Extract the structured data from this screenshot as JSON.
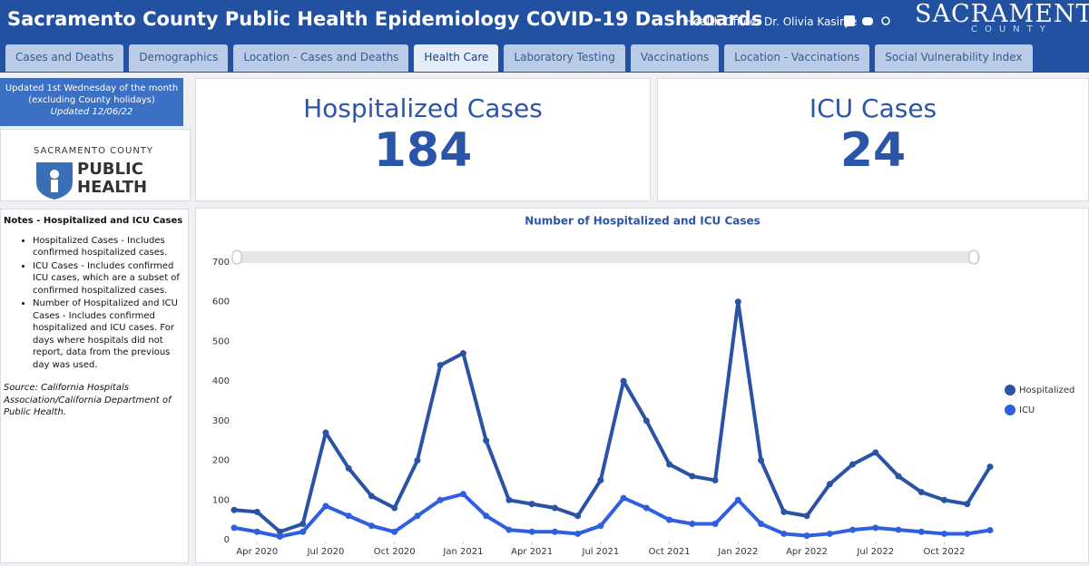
{
  "header": {
    "title": "Sacramento County Public Health Epidemiology COVID-19 Dashboards",
    "officer": "Health Officer Dr. Olivia Kasirye",
    "logo_top": "SACRAMENTO",
    "logo_bottom": "COUNTY"
  },
  "tabs": [
    "Cases and Deaths",
    "Demographics",
    "Location - Cases and Deaths",
    "Health Care",
    "Laboratory Testing",
    "Vaccinations",
    "Location - Vaccinations",
    "Social Vulnerability Index"
  ],
  "active_tab": "Health Care",
  "sidebar": {
    "update_lines": [
      "Updated 1st Wednesday of the month",
      "(excluding County holidays)",
      "Updated 12/06/22"
    ],
    "logo_lines": [
      "SACRAMENTO COUNTY",
      "PUBLIC",
      "HEALTH"
    ],
    "notes_title": "Notes - Hospitalized and ICU Cases",
    "notes": [
      "Hospitalized Cases - Includes confirmed hospitalized cases.",
      "ICU Cases - Includes confirmed ICU cases, which are a subset of confirmed hospitalized cases.",
      "Number of Hospitalized and ICU Cases - Includes confirmed hospitalized and ICU cases. For days where hospitals did not report, data from the previous day was used."
    ],
    "source": "Source: California Hospitals Association/California Department of Public Health."
  },
  "kpis": [
    {
      "label": "Hospitalized Cases",
      "value": 184
    },
    {
      "label": "ICU Cases",
      "value": 24
    }
  ],
  "chart_data": {
    "type": "line",
    "title": "Number of Hospitalized and ICU Cases",
    "x": [
      "2020-03",
      "2020-04",
      "2020-05",
      "2020-06",
      "2020-07",
      "2020-08",
      "2020-09",
      "2020-10",
      "2020-11",
      "2020-12",
      "2021-01",
      "2021-02",
      "2021-03",
      "2021-04",
      "2021-05",
      "2021-06",
      "2021-07",
      "2021-08",
      "2021-09",
      "2021-10",
      "2021-11",
      "2021-12",
      "2022-01",
      "2022-02",
      "2022-03",
      "2022-04",
      "2022-05",
      "2022-06",
      "2022-07",
      "2022-08",
      "2022-09",
      "2022-10",
      "2022-11",
      "2022-12"
    ],
    "series": [
      {
        "name": "Hospitalized",
        "color": "#2a52a5",
        "values": [
          75,
          70,
          20,
          40,
          270,
          180,
          110,
          80,
          200,
          440,
          470,
          250,
          100,
          90,
          80,
          60,
          150,
          400,
          300,
          190,
          160,
          150,
          600,
          200,
          70,
          60,
          140,
          190,
          220,
          160,
          120,
          100,
          90,
          184
        ]
      },
      {
        "name": "ICU",
        "color": "#2f5fe0",
        "values": [
          30,
          20,
          8,
          20,
          85,
          60,
          35,
          20,
          60,
          100,
          115,
          60,
          25,
          20,
          20,
          15,
          35,
          105,
          80,
          50,
          40,
          40,
          100,
          40,
          15,
          10,
          15,
          25,
          30,
          25,
          20,
          15,
          15,
          24
        ]
      }
    ],
    "xlim": [
      "2020-03",
      "2022-12"
    ],
    "xticks": [
      {
        "value": "2020-04",
        "label": "Apr 2020"
      },
      {
        "value": "2020-07",
        "label": "Jul 2020"
      },
      {
        "value": "2020-10",
        "label": "Oct 2020"
      },
      {
        "value": "2021-01",
        "label": "Jan 2021"
      },
      {
        "value": "2021-04",
        "label": "Apr 2021"
      },
      {
        "value": "2021-07",
        "label": "Jul 2021"
      },
      {
        "value": "2021-10",
        "label": "Oct 2021"
      },
      {
        "value": "2022-01",
        "label": "Jan 2022"
      },
      {
        "value": "2022-04",
        "label": "Apr 2022"
      },
      {
        "value": "2022-07",
        "label": "Jul 2022"
      },
      {
        "value": "2022-10",
        "label": "Oct 2022"
      }
    ],
    "ylim": [
      0,
      700
    ],
    "yticks": [
      0,
      100,
      200,
      300,
      400,
      500,
      600,
      700
    ],
    "grid": false
  }
}
